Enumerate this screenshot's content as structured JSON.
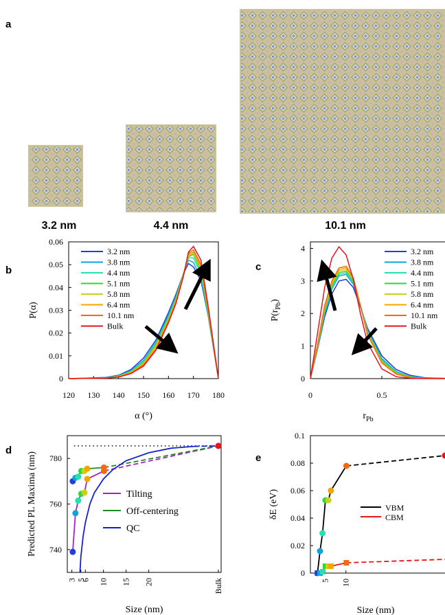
{
  "panel_labels": {
    "a": "a",
    "b": "b",
    "c": "c",
    "d": "d",
    "e": "e"
  },
  "size_labels": [
    "3.2 nm",
    "4.4 nm",
    "10.1 nm"
  ],
  "colors": {
    "s32": "#1f3fd8",
    "s38": "#12a2e0",
    "s44": "#26e0b0",
    "s51": "#33d633",
    "s58": "#c8d21a",
    "s64": "#f5a400",
    "s101": "#f06b12",
    "bulk": "#e8141a",
    "tilting": "#a51fd0",
    "offcenter": "#1f8a1f",
    "qc": "#1420d0",
    "vbm": "#000000",
    "cbm": "#e8141a",
    "crystal_tile": "#c9c39a",
    "crystal_dark": "#8f8a66",
    "crystal_atom": "#9fb7e6"
  },
  "chart_data": [
    {
      "id": "b",
      "type": "line",
      "xlabel": "α (°)",
      "ylabel": "P(α)",
      "xlim": [
        120,
        180
      ],
      "ylim": [
        0,
        0.06
      ],
      "xticks": [
        "120",
        "130",
        "140",
        "150",
        "160",
        "170",
        "180"
      ],
      "yticks": [
        "0",
        "0.01",
        "0.02",
        "0.03",
        "0.04",
        "0.05",
        "0.06"
      ],
      "series": [
        {
          "name": "3.2 nm",
          "x": [
            120,
            135,
            140,
            145,
            150,
            155,
            160,
            163,
            166,
            168,
            170,
            173,
            176,
            180
          ],
          "y": [
            0,
            0.0005,
            0.0015,
            0.004,
            0.009,
            0.017,
            0.029,
            0.037,
            0.046,
            0.0505,
            0.049,
            0.043,
            0.027,
            0
          ]
        },
        {
          "name": "3.8 nm",
          "x": [
            120,
            135,
            140,
            145,
            150,
            155,
            160,
            163,
            166,
            168,
            170,
            173,
            176,
            180
          ],
          "y": [
            0,
            0.0004,
            0.0013,
            0.0035,
            0.008,
            0.016,
            0.028,
            0.036,
            0.046,
            0.052,
            0.051,
            0.044,
            0.027,
            0
          ]
        },
        {
          "name": "4.4 nm",
          "x": [
            120,
            135,
            140,
            145,
            150,
            155,
            160,
            163,
            166,
            168,
            170,
            173,
            176,
            180
          ],
          "y": [
            0,
            0.0003,
            0.0012,
            0.0033,
            0.0075,
            0.0155,
            0.027,
            0.0355,
            0.046,
            0.053,
            0.053,
            0.046,
            0.028,
            0
          ]
        },
        {
          "name": "5.1 nm",
          "x": [
            120,
            135,
            140,
            145,
            150,
            155,
            160,
            163,
            166,
            168,
            170,
            173,
            176,
            180
          ],
          "y": [
            0,
            0.0003,
            0.0011,
            0.003,
            0.007,
            0.015,
            0.0265,
            0.035,
            0.046,
            0.0535,
            0.0545,
            0.047,
            0.028,
            0
          ]
        },
        {
          "name": "5.8 nm",
          "x": [
            120,
            135,
            140,
            145,
            150,
            155,
            160,
            163,
            166,
            168,
            170,
            173,
            176,
            180
          ],
          "y": [
            0,
            0.0003,
            0.001,
            0.0028,
            0.0068,
            0.0145,
            0.026,
            0.0345,
            0.0455,
            0.054,
            0.055,
            0.048,
            0.029,
            0
          ]
        },
        {
          "name": "6.4 nm",
          "x": [
            120,
            135,
            140,
            145,
            150,
            155,
            160,
            163,
            166,
            168,
            170,
            173,
            176,
            180
          ],
          "y": [
            0,
            0.0002,
            0.0009,
            0.0026,
            0.0065,
            0.014,
            0.0255,
            0.034,
            0.0455,
            0.0545,
            0.0555,
            0.049,
            0.029,
            0
          ]
        },
        {
          "name": "10.1 nm",
          "x": [
            120,
            135,
            140,
            145,
            150,
            155,
            160,
            163,
            166,
            168,
            170,
            173,
            176,
            180
          ],
          "y": [
            0,
            0.0002,
            0.0008,
            0.0024,
            0.006,
            0.013,
            0.025,
            0.0335,
            0.045,
            0.055,
            0.0565,
            0.05,
            0.03,
            0
          ]
        },
        {
          "name": "Bulk",
          "x": [
            120,
            135,
            140,
            145,
            150,
            155,
            160,
            163,
            166,
            168,
            170,
            173,
            176,
            180
          ],
          "y": [
            0,
            0.0002,
            0.0007,
            0.0022,
            0.0055,
            0.0125,
            0.0245,
            0.033,
            0.045,
            0.0555,
            0.058,
            0.052,
            0.031,
            0
          ]
        }
      ]
    },
    {
      "id": "c",
      "type": "line",
      "xlabel": "r_Pb",
      "ylabel": "P(r_Pb)",
      "xlim": [
        0,
        1
      ],
      "ylim": [
        0,
        4.2
      ],
      "xticks": [
        "0",
        "0.5"
      ],
      "yticks": [
        "0",
        "1",
        "2",
        "3",
        "4"
      ],
      "series": [
        {
          "name": "3.2 nm",
          "x": [
            0,
            0.05,
            0.1,
            0.15,
            0.2,
            0.25,
            0.3,
            0.35,
            0.4,
            0.5,
            0.6,
            0.7,
            0.8,
            1.0
          ],
          "y": [
            0,
            0.9,
            1.9,
            2.6,
            3.0,
            3.05,
            2.8,
            2.2,
            1.55,
            0.7,
            0.28,
            0.1,
            0.03,
            0
          ]
        },
        {
          "name": "3.8 nm",
          "x": [
            0,
            0.05,
            0.1,
            0.15,
            0.2,
            0.25,
            0.3,
            0.35,
            0.4,
            0.5,
            0.6,
            0.7,
            0.8,
            1.0
          ],
          "y": [
            0,
            0.9,
            2.0,
            2.75,
            3.15,
            3.2,
            2.9,
            2.25,
            1.5,
            0.62,
            0.22,
            0.07,
            0.02,
            0
          ]
        },
        {
          "name": "4.4 nm",
          "x": [
            0,
            0.05,
            0.1,
            0.15,
            0.2,
            0.25,
            0.3,
            0.35,
            0.4,
            0.5,
            0.6,
            0.7,
            0.8,
            1.0
          ],
          "y": [
            0,
            0.95,
            2.05,
            2.8,
            3.2,
            3.25,
            2.95,
            2.25,
            1.45,
            0.58,
            0.2,
            0.06,
            0.02,
            0
          ]
        },
        {
          "name": "5.1 nm",
          "x": [
            0,
            0.05,
            0.1,
            0.15,
            0.2,
            0.25,
            0.3,
            0.35,
            0.4,
            0.5,
            0.6,
            0.7,
            0.8,
            1.0
          ],
          "y": [
            0,
            0.95,
            2.1,
            2.85,
            3.25,
            3.3,
            3.0,
            2.25,
            1.42,
            0.55,
            0.18,
            0.05,
            0.01,
            0
          ]
        },
        {
          "name": "5.8 nm",
          "x": [
            0,
            0.05,
            0.1,
            0.15,
            0.2,
            0.25,
            0.3,
            0.35,
            0.4,
            0.5,
            0.6,
            0.7,
            0.8,
            1.0
          ],
          "y": [
            0,
            1.0,
            2.15,
            2.9,
            3.3,
            3.35,
            3.05,
            2.25,
            1.4,
            0.52,
            0.16,
            0.04,
            0.01,
            0
          ]
        },
        {
          "name": "6.4 nm",
          "x": [
            0,
            0.05,
            0.1,
            0.15,
            0.2,
            0.25,
            0.3,
            0.35,
            0.4,
            0.5,
            0.6,
            0.7,
            0.8,
            1.0
          ],
          "y": [
            0,
            1.0,
            2.2,
            2.95,
            3.35,
            3.4,
            3.1,
            2.25,
            1.38,
            0.5,
            0.15,
            0.04,
            0.01,
            0
          ]
        },
        {
          "name": "10.1 nm",
          "x": [
            0,
            0.05,
            0.1,
            0.15,
            0.2,
            0.25,
            0.3,
            0.35,
            0.4,
            0.5,
            0.6,
            0.7,
            0.8,
            1.0
          ],
          "y": [
            0,
            1.05,
            2.25,
            3.0,
            3.4,
            3.45,
            3.1,
            2.25,
            1.35,
            0.48,
            0.14,
            0.03,
            0.01,
            0
          ]
        },
        {
          "name": "Bulk",
          "x": [
            0,
            0.05,
            0.1,
            0.15,
            0.2,
            0.25,
            0.3,
            0.35,
            0.4,
            0.5,
            0.6,
            0.7,
            0.8,
            1.0
          ],
          "y": [
            0,
            1.4,
            2.8,
            3.7,
            4.05,
            3.8,
            3.05,
            2.0,
            1.1,
            0.3,
            0.06,
            0.01,
            0,
            0
          ]
        }
      ]
    },
    {
      "id": "d",
      "type": "line",
      "xlabel": "Size (nm)",
      "ylabel": "Predicted PL Maxima (nm)",
      "xlim": [
        2,
        36
      ],
      "ylim": [
        730,
        790
      ],
      "xticks": [
        "3",
        "5",
        "6",
        "10",
        "15",
        "20",
        "Bulk"
      ],
      "yticks": [
        "740",
        "760",
        "780"
      ],
      "reference_level": 785.5,
      "series": [
        {
          "name": "Tilting",
          "x": [
            3.2,
            3.8,
            4.4,
            5.1,
            5.8,
            6.4,
            10.1
          ],
          "y": [
            739,
            756,
            761.5,
            764.5,
            765,
            771,
            774.5
          ],
          "bulk_y": 785.5
        },
        {
          "name": "Off-centering",
          "x": [
            3.2,
            3.8,
            4.4,
            5.1,
            5.8,
            6.4,
            10.1
          ],
          "y": [
            770,
            771.5,
            772,
            774.5,
            774.5,
            775.5,
            776
          ],
          "bulk_y": 785.5
        },
        {
          "name": "QC",
          "x": [
            4.8,
            5,
            5.5,
            6,
            7,
            8,
            10,
            12,
            15,
            20,
            25,
            30
          ],
          "y": [
            730,
            737,
            746,
            752,
            760,
            765,
            771,
            775,
            779,
            782.5,
            784.5,
            785.3
          ],
          "bulk_y": 785.5
        }
      ],
      "markers": {
        "sizes": [
          3.2,
          3.8,
          4.4,
          5.1,
          5.8,
          6.4,
          10.1
        ],
        "tilting": [
          739,
          756,
          761.5,
          764.5,
          765,
          771,
          774.5
        ],
        "offcenter": [
          770,
          771.5,
          772,
          774.5,
          774.5,
          775.5,
          776
        ]
      }
    },
    {
      "id": "e",
      "type": "line",
      "xlabel": "Size (nm)",
      "ylabel": "δE (eV)",
      "xlim": [
        1.5,
        36
      ],
      "ylim": [
        0,
        0.1
      ],
      "xticks": [
        "5",
        "10"
      ],
      "yticks": [
        "0",
        "0.02",
        "0.04",
        "0.06",
        "0.08",
        "0.1"
      ],
      "series": [
        {
          "name": "VBM",
          "x": [
            3.2,
            3.8,
            4.4,
            5.1,
            5.8,
            6.4,
            10.1
          ],
          "y": [
            0,
            0.016,
            0.029,
            0.053,
            0.053,
            0.06,
            0.078
          ],
          "bulk_y": 0.0855
        },
        {
          "name": "CBM",
          "x": [
            3.2,
            3.8,
            4.4,
            5.1,
            5.8,
            6.4,
            10.1
          ],
          "y": [
            0,
            0,
            0.001,
            0.005,
            0.005,
            0.005,
            0.0075
          ],
          "bulk_y": 0.01
        }
      ]
    }
  ]
}
